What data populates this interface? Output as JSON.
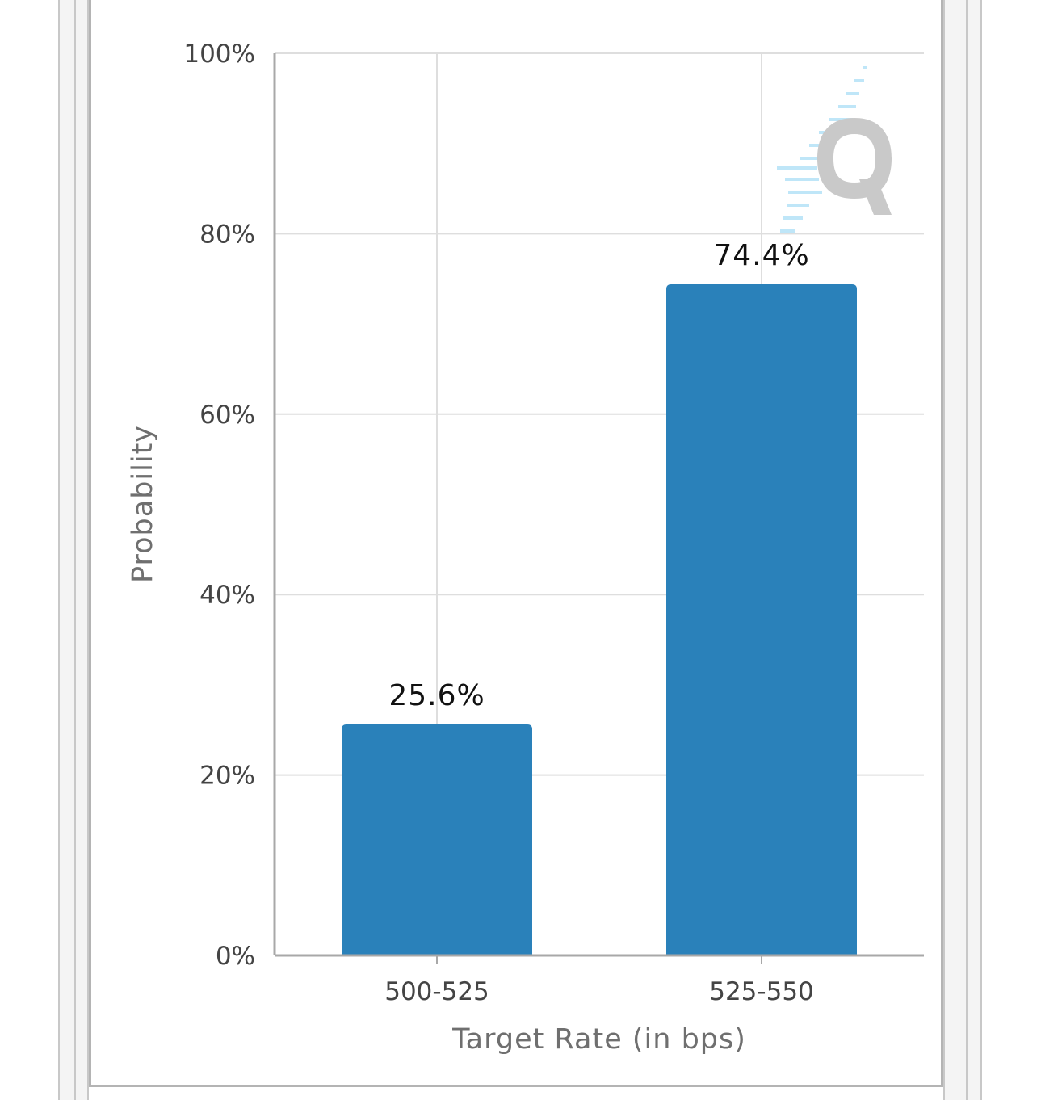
{
  "colors": {
    "bar": "#2a81ba",
    "grid": "#dedede",
    "axis": "#a8a8a8",
    "frame": "#b4b4b4",
    "gutter": "#f4f4f4"
  },
  "watermark": {
    "icon": "q-logo-watermark-icon"
  },
  "chart_data": {
    "type": "bar",
    "categories": [
      "500-525",
      "525-550"
    ],
    "values": [
      25.6,
      74.4
    ],
    "value_labels": [
      "25.6%",
      "74.4%"
    ],
    "xlabel": "Target Rate (in bps)",
    "ylabel": "Probability",
    "ylim": [
      0,
      100
    ],
    "yticks": [
      0,
      20,
      40,
      60,
      80,
      100
    ],
    "ytick_labels": [
      "0%",
      "20%",
      "40%",
      "60%",
      "80%",
      "100%"
    ],
    "grid": true,
    "legend": false
  }
}
